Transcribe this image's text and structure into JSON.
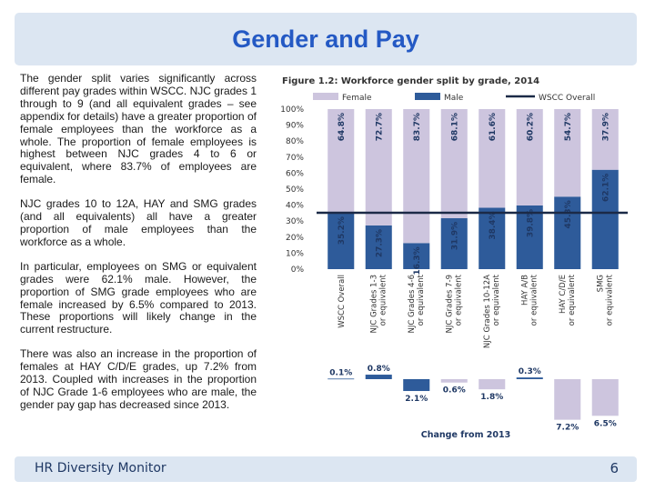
{
  "slide": {
    "title": "Gender and Pay",
    "paragraphs": [
      "The gender split varies significantly across different pay grades within WSCC. NJC grades 1 through to 9 (and all equivalent grades – see appendix for details) have a greater proportion of female employees than the workforce as a whole. The proportion of female employees is highest between NJC grades 4 to 6 or equivalent, where 83.7% of employees are female.",
      "NJC grades 10 to 12A, HAY and SMG grades (and all equivalents) all have a greater proportion of male employees than the workforce as a whole.",
      "In particular, employees on SMG or equivalent grades were 62.1% male. However, the proportion of SMG grade employees who are female increased by 6.5% compared to 2013. These proportions will likely change in the current restructure.",
      "There was also an increase in the proportion of females at HAY C/D/E grades, up 7.2% from 2013. Coupled with increases in the proportion of NJC Grade 1-6 employees who are male, the gender pay gap has decreased since 2013."
    ],
    "footer_left": "HR Diversity Monitor",
    "footer_right": "6"
  },
  "chart_data": [
    {
      "type": "bar",
      "stacked": true,
      "percent_stacked": true,
      "title": "Figure 1.2: Workforce gender split by grade, 2014",
      "categories": [
        "WSCC Overall",
        "NJC Grades 1-3 or equivalent",
        "NJC Grades 4-6 or equivalent",
        "NJC Grades 7-9 or equivalent",
        "NJC Grades 10-12A or equivalent",
        "HAY A/B or equivalent",
        "HAY C/D/E or equivalent",
        "SMG or equivalent"
      ],
      "series": [
        {
          "name": "Male",
          "values": [
            35.2,
            27.3,
            16.3,
            31.9,
            38.4,
            39.8,
            45.3,
            62.1
          ],
          "labels": [
            "35.2%",
            "27.3%",
            "16.3%",
            "31.9%",
            "38.4%",
            "39.8%",
            "45.3%",
            "62.1%"
          ],
          "color": "#2e5b9a"
        },
        {
          "name": "Female",
          "values": [
            64.8,
            72.7,
            83.7,
            68.1,
            61.6,
            60.2,
            54.7,
            37.9
          ],
          "labels": [
            "64.8%",
            "72.7%",
            "83.7%",
            "68.1%",
            "61.6%",
            "60.2%",
            "54.7%",
            "37.9%"
          ],
          "color": "#cdc5de"
        }
      ],
      "reference_line": {
        "name": "WSCC Overall",
        "value": 35.2,
        "color": "#1b2a47"
      },
      "ylim": [
        0,
        100
      ],
      "yticks": [
        "0%",
        "10%",
        "20%",
        "30%",
        "40%",
        "50%",
        "60%",
        "70%",
        "80%",
        "90%",
        "100%"
      ],
      "legend": "top",
      "grid": false
    },
    {
      "type": "bar",
      "title": "Change from 2013",
      "categories": [
        "WSCC Overall",
        "NJC Grades 1-3 or equivalent",
        "NJC Grades 4-6 or equivalent",
        "NJC Grades 7-9 or equivalent",
        "NJC Grades 10-12A or equivalent",
        "HAY A/B or equivalent",
        "HAY C/D/E or equivalent",
        "SMG or equivalent"
      ],
      "values": [
        0.1,
        0.8,
        -2.1,
        -0.6,
        -1.8,
        0.3,
        -7.2,
        -6.5
      ],
      "labels": [
        "0.1%",
        "0.8%",
        "2.1%",
        "0.6%",
        "1.8%",
        "0.3%",
        "7.2%",
        "6.5%"
      ],
      "colors": [
        "#2e5b9a",
        "#2e5b9a",
        "#2e5b9a",
        "#cdc5de",
        "#cdc5de",
        "#2e5b9a",
        "#cdc5de",
        "#cdc5de"
      ],
      "ylim": [
        -8,
        1.5
      ]
    }
  ]
}
